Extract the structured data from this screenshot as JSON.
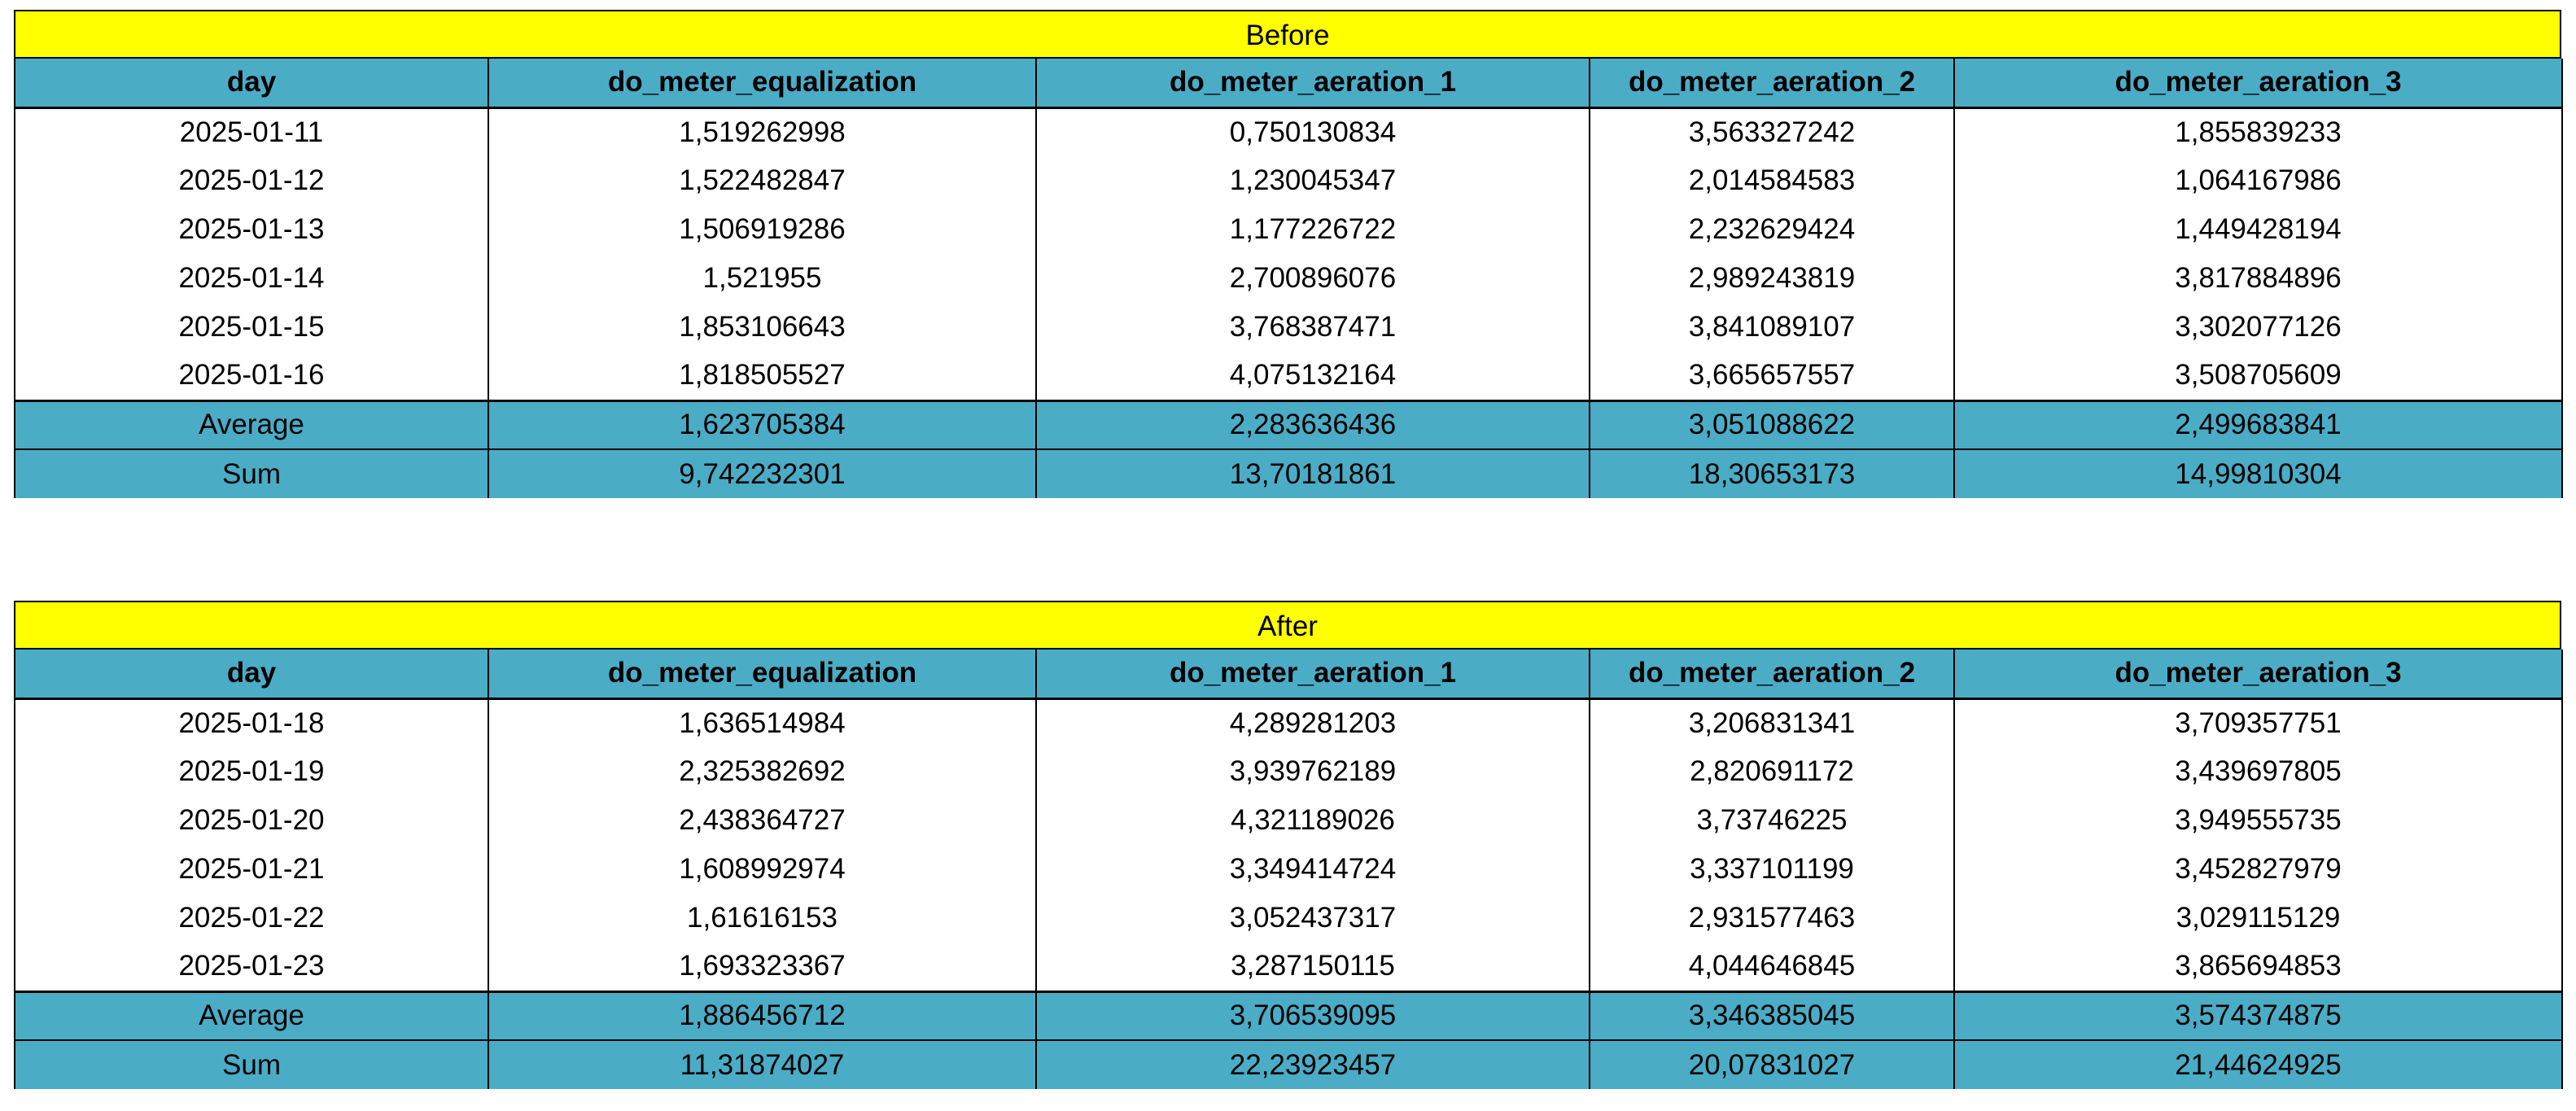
{
  "colors": {
    "title_bar": "#ffff00",
    "header": "#4bacc6",
    "summary": "#4bacc6",
    "body": "#ffffff",
    "grid": "#000000"
  },
  "before": {
    "title": "Before",
    "columns": [
      "day",
      "do_meter_equalization",
      "do_meter_aeration_1",
      "do_meter_aeration_2",
      "do_meter_aeration_3"
    ],
    "rows": [
      [
        "2025-01-11",
        "1,519262998",
        "0,750130834",
        "3,563327242",
        "1,855839233"
      ],
      [
        "2025-01-12",
        "1,522482847",
        "1,230045347",
        "2,014584583",
        "1,064167986"
      ],
      [
        "2025-01-13",
        "1,506919286",
        "1,177226722",
        "2,232629424",
        "1,449428194"
      ],
      [
        "2025-01-14",
        "1,521955",
        "2,700896076",
        "2,989243819",
        "3,817884896"
      ],
      [
        "2025-01-15",
        "1,853106643",
        "3,768387471",
        "3,841089107",
        "3,302077126"
      ],
      [
        "2025-01-16",
        "1,818505527",
        "4,075132164",
        "3,665657557",
        "3,508705609"
      ]
    ],
    "average": [
      "Average",
      "1,623705384",
      "2,283636436",
      "3,051088622",
      "2,499683841"
    ],
    "sum": [
      "Sum",
      "9,742232301",
      "13,70181861",
      "18,30653173",
      "14,99810304"
    ]
  },
  "after": {
    "title": "After",
    "columns": [
      "day",
      "do_meter_equalization",
      "do_meter_aeration_1",
      "do_meter_aeration_2",
      "do_meter_aeration_3"
    ],
    "rows": [
      [
        "2025-01-18",
        "1,636514984",
        "4,289281203",
        "3,206831341",
        "3,709357751"
      ],
      [
        "2025-01-19",
        "2,325382692",
        "3,939762189",
        "2,820691172",
        "3,439697805"
      ],
      [
        "2025-01-20",
        "2,438364727",
        "4,321189026",
        "3,73746225",
        "3,949555735"
      ],
      [
        "2025-01-21",
        "1,608992974",
        "3,349414724",
        "3,337101199",
        "3,452827979"
      ],
      [
        "2025-01-22",
        "1,61616153",
        "3,052437317",
        "2,931577463",
        "3,029115129"
      ],
      [
        "2025-01-23",
        "1,693323367",
        "3,287150115",
        "4,044646845",
        "3,865694853"
      ]
    ],
    "average": [
      "Average",
      "1,886456712",
      "3,706539095",
      "3,346385045",
      "3,574374875"
    ],
    "sum": [
      "Sum",
      "11,31874027",
      "22,23923457",
      "20,07831027",
      "21,44624925"
    ]
  }
}
